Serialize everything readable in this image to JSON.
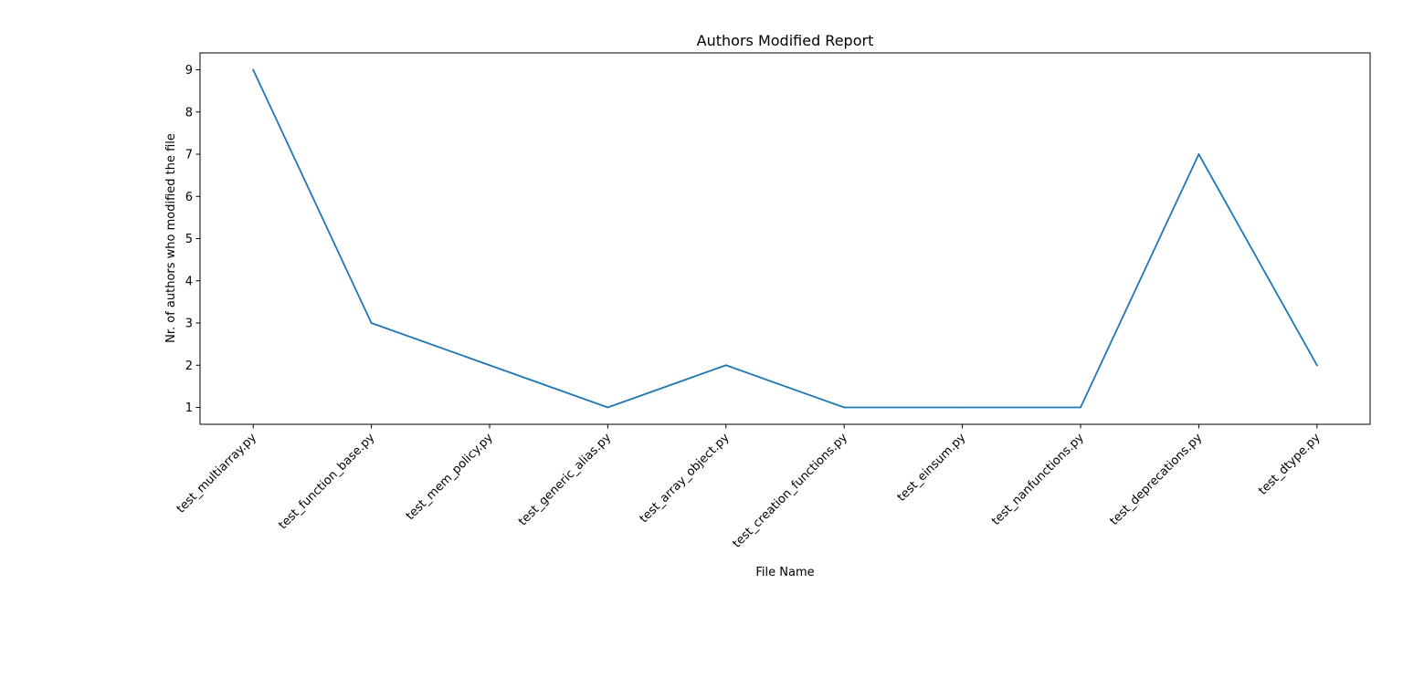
{
  "chart_data": {
    "type": "line",
    "title": "Authors Modified Report",
    "xlabel": "File Name",
    "ylabel": "Nr. of authors who modified the file",
    "categories": [
      "test_multiarray.py",
      "test_function_base.py",
      "test_mem_policy.py",
      "test_generic_alias.py",
      "test_array_object.py",
      "test_creation_functions.py",
      "test_einsum.py",
      "test_nanfunctions.py",
      "test_deprecations.py",
      "test_dtype.py"
    ],
    "series": [
      {
        "values": [
          9,
          3,
          2,
          1,
          2,
          1,
          1,
          1,
          7,
          2
        ],
        "color": "#1f77b4"
      }
    ],
    "yticks": [
      "1",
      "2",
      "3",
      "4",
      "5",
      "6",
      "7",
      "8",
      "9"
    ],
    "ylim": [
      0.6,
      9.4
    ],
    "grid": false,
    "legend": "none"
  }
}
